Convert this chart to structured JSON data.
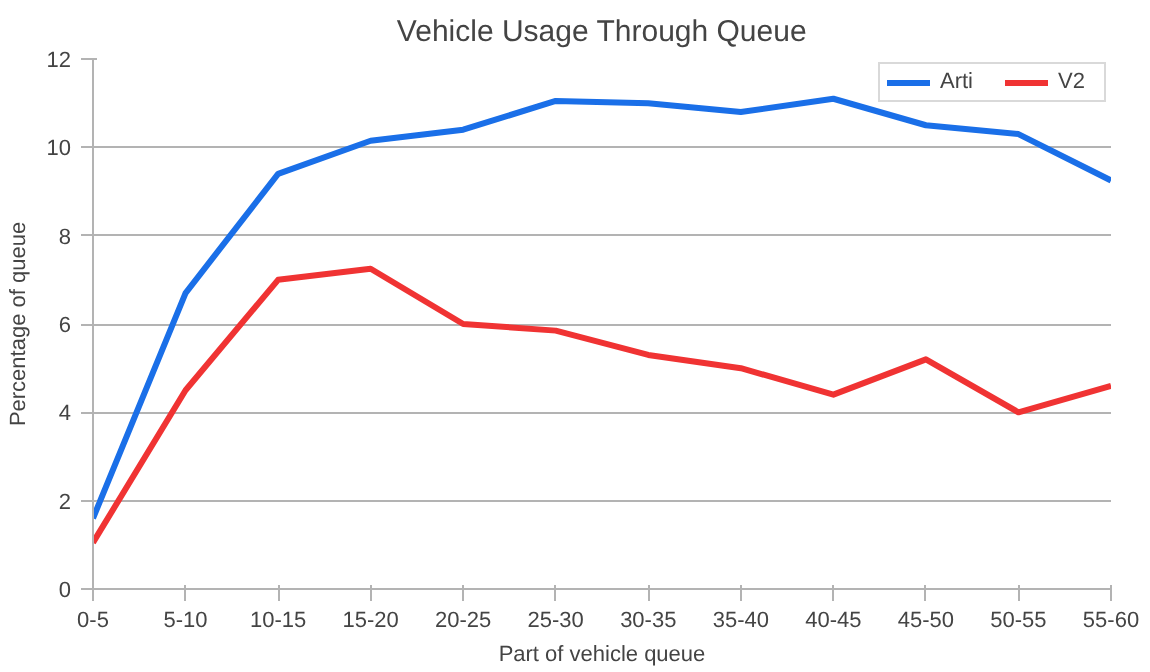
{
  "chart_data": {
    "type": "line",
    "title": "Vehicle Usage Through Queue",
    "xlabel": "Part of vehicle queue",
    "ylabel": "Percentage of queue",
    "categories": [
      "0-5",
      "5-10",
      "10-15",
      "15-20",
      "20-25",
      "25-30",
      "30-35",
      "35-40",
      "40-45",
      "45-50",
      "50-55",
      "55-60"
    ],
    "series": [
      {
        "name": "Arti",
        "color": "#1a6fe8",
        "values": [
          1.6,
          6.7,
          9.4,
          10.15,
          10.4,
          11.05,
          11.0,
          10.8,
          11.1,
          10.5,
          10.3,
          9.25
        ]
      },
      {
        "name": "V2",
        "color": "#f03333",
        "values": [
          1.05,
          4.5,
          7.0,
          7.25,
          6.0,
          5.85,
          5.3,
          5.0,
          4.4,
          5.2,
          4.0,
          4.6
        ]
      }
    ],
    "ylim": [
      0,
      12
    ],
    "yticks": [
      0,
      2,
      4,
      6,
      8,
      10,
      12
    ],
    "grid": "y",
    "legend": "top right",
    "marker": "none",
    "line_style": "solid"
  }
}
